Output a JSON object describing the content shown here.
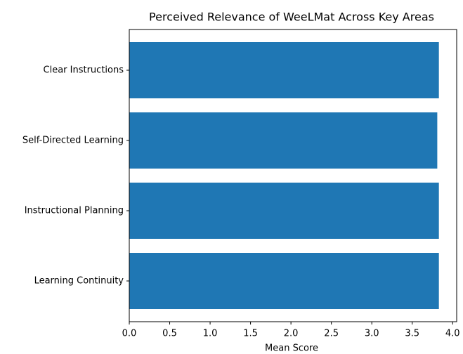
{
  "chart_data": {
    "type": "barh",
    "title": "Perceived Relevance of WeeLMat Across Key Areas",
    "xlabel": "Mean Score",
    "categories": [
      "Clear Instructions",
      "Self-Directed Learning",
      "Instructional Planning",
      "Learning Continuity"
    ],
    "values": [
      3.83,
      3.81,
      3.83,
      3.83
    ],
    "color": "#1f77b4",
    "xlim": [
      0,
      4.05
    ],
    "xticks": [
      {
        "value": 0,
        "label": "0.0"
      },
      0.5,
      {
        "value": 1,
        "label": "1.0"
      },
      1.5,
      {
        "value": 2,
        "label": "2.0"
      },
      2.5,
      {
        "value": 3,
        "label": "3.0"
      },
      3.5,
      {
        "value": 4,
        "label": "4.0"
      }
    ],
    "grid": false
  }
}
